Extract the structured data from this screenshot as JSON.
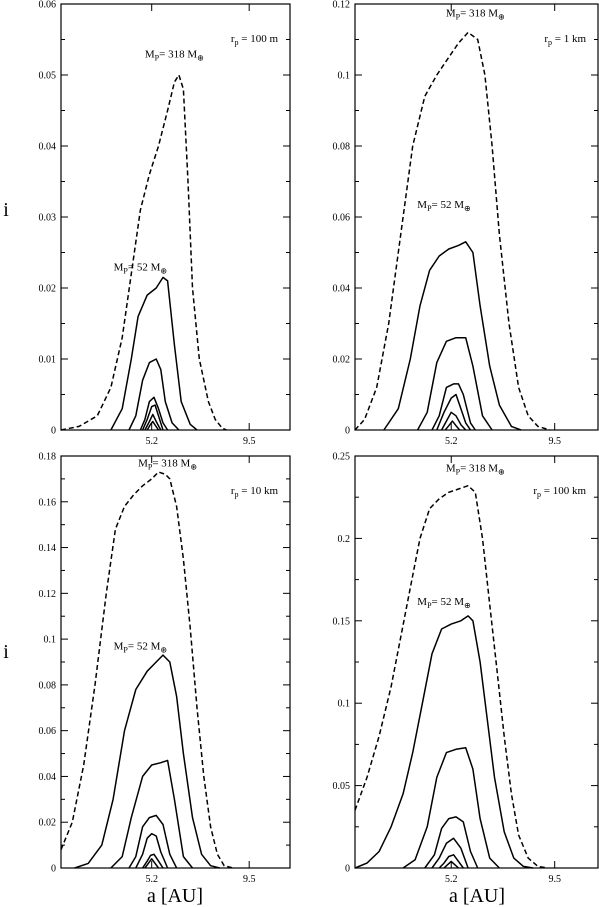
{
  "figure": {
    "xlabel": "a [AU]",
    "ylabel": "i"
  },
  "chart_data": [
    {
      "type": "line",
      "panel": "top-left",
      "xlim": [
        1.2,
        11.3
      ],
      "ylim": [
        0,
        0.06
      ],
      "xticks": [
        5.2,
        9.5
      ],
      "yticks": [
        0,
        0.01,
        0.02,
        0.03,
        0.04,
        0.05,
        0.06
      ],
      "radius_label": "r_p = 100 m",
      "radius_text": {
        "pre": "r",
        "sub": "p",
        "post": " = 100 m"
      },
      "annotations": [
        {
          "pre": "M",
          "sub": "P",
          "post": "= 318 M",
          "sym": "⊕",
          "x": 6.2,
          "y": 0.0525
        },
        {
          "pre": "M",
          "sub": "P",
          "post": "= 52 M",
          "sym": "⊕",
          "x": 4.7,
          "y": 0.0225
        }
      ],
      "series": [
        {
          "dash": true,
          "x": [
            1.2,
            2.0,
            2.8,
            3.4,
            3.9,
            4.3,
            4.7,
            5.1,
            5.5,
            5.9,
            6.2,
            6.4,
            6.6,
            6.8,
            7.0,
            7.3,
            7.7,
            8.0,
            8.3,
            8.5
          ],
          "y": [
            0,
            0.0005,
            0.002,
            0.006,
            0.013,
            0.022,
            0.031,
            0.036,
            0.04,
            0.045,
            0.049,
            0.05,
            0.048,
            0.035,
            0.02,
            0.01,
            0.004,
            0.0015,
            0.0003,
            0
          ]
        },
        {
          "dash": false,
          "x": [
            3.4,
            3.9,
            4.3,
            4.6,
            5.0,
            5.4,
            5.7,
            5.9,
            6.2,
            6.5,
            6.9,
            7.2
          ],
          "y": [
            0,
            0.003,
            0.01,
            0.016,
            0.019,
            0.02,
            0.0215,
            0.021,
            0.012,
            0.004,
            0.0008,
            0
          ]
        },
        {
          "dash": false,
          "x": [
            4.2,
            4.5,
            4.8,
            5.1,
            5.4,
            5.6,
            5.8,
            6.1,
            6.4
          ],
          "y": [
            0,
            0.002,
            0.007,
            0.0095,
            0.01,
            0.0085,
            0.004,
            0.001,
            0
          ]
        },
        {
          "dash": false,
          "x": [
            4.7,
            4.9,
            5.1,
            5.3,
            5.5,
            5.7,
            5.9
          ],
          "y": [
            0,
            0.0015,
            0.004,
            0.0046,
            0.003,
            0.001,
            0
          ]
        },
        {
          "dash": false,
          "x": [
            4.8,
            5.0,
            5.2,
            5.35,
            5.5,
            5.7
          ],
          "y": [
            0,
            0.0015,
            0.0033,
            0.0035,
            0.002,
            0
          ]
        },
        {
          "dash": false,
          "x": [
            4.9,
            5.1,
            5.25,
            5.4,
            5.6
          ],
          "y": [
            0,
            0.0012,
            0.0022,
            0.0012,
            0
          ]
        },
        {
          "dash": false,
          "x": [
            5.0,
            5.15,
            5.25,
            5.35,
            5.5
          ],
          "y": [
            0,
            0.0008,
            0.0012,
            0.0007,
            0
          ]
        }
      ]
    },
    {
      "type": "line",
      "panel": "top-right",
      "xlim": [
        1.2,
        11.3
      ],
      "ylim": [
        0,
        0.12
      ],
      "xticks": [
        5.2,
        9.5
      ],
      "yticks": [
        0,
        0.02,
        0.04,
        0.06,
        0.08,
        0.1,
        0.12
      ],
      "radius_label": "r_p = 1 km",
      "radius_text": {
        "pre": "r",
        "sub": "p",
        "post": " = 1 km"
      },
      "annotations": [
        {
          "pre": "M",
          "sub": "P",
          "post": "= 318 M",
          "sym": "⊕",
          "x": 6.2,
          "y": 0.1165
        },
        {
          "pre": "M",
          "sub": "P",
          "post": "= 52 M",
          "sym": "⊕",
          "x": 4.9,
          "y": 0.0625
        }
      ],
      "series": [
        {
          "dash": true,
          "x": [
            1.2,
            1.6,
            2.1,
            2.6,
            3.1,
            3.6,
            4.1,
            4.6,
            5.1,
            5.5,
            5.9,
            6.3,
            6.6,
            6.9,
            7.2,
            7.6,
            8.0,
            8.4,
            8.8,
            9.3
          ],
          "y": [
            0,
            0.003,
            0.012,
            0.03,
            0.055,
            0.08,
            0.094,
            0.1,
            0.105,
            0.109,
            0.112,
            0.11,
            0.1,
            0.08,
            0.055,
            0.03,
            0.012,
            0.004,
            0.001,
            0
          ]
        },
        {
          "dash": false,
          "x": [
            2.4,
            3.0,
            3.5,
            3.9,
            4.3,
            4.7,
            5.1,
            5.5,
            5.8,
            6.1,
            6.4,
            6.8,
            7.2,
            7.7,
            8.1
          ],
          "y": [
            0,
            0.006,
            0.02,
            0.035,
            0.045,
            0.049,
            0.051,
            0.052,
            0.053,
            0.05,
            0.035,
            0.018,
            0.007,
            0.001,
            0
          ]
        },
        {
          "dash": false,
          "x": [
            3.8,
            4.2,
            4.6,
            5.0,
            5.4,
            5.8,
            6.1,
            6.5,
            6.9
          ],
          "y": [
            0,
            0.005,
            0.019,
            0.025,
            0.026,
            0.026,
            0.018,
            0.004,
            0
          ]
        },
        {
          "dash": false,
          "x": [
            4.4,
            4.7,
            5.0,
            5.3,
            5.5,
            5.7,
            6.0,
            6.2
          ],
          "y": [
            0,
            0.004,
            0.012,
            0.013,
            0.013,
            0.01,
            0.002,
            0
          ]
        },
        {
          "dash": false,
          "x": [
            4.6,
            4.9,
            5.2,
            5.4,
            5.6,
            5.8,
            6.0
          ],
          "y": [
            0,
            0.005,
            0.009,
            0.01,
            0.006,
            0.002,
            0
          ]
        },
        {
          "dash": false,
          "x": [
            4.8,
            5.0,
            5.2,
            5.4,
            5.6,
            5.8
          ],
          "y": [
            0,
            0.0025,
            0.005,
            0.004,
            0.0015,
            0
          ]
        },
        {
          "dash": false,
          "x": [
            4.95,
            5.1,
            5.25,
            5.4,
            5.55
          ],
          "y": [
            0,
            0.0012,
            0.0025,
            0.0012,
            0
          ]
        }
      ]
    },
    {
      "type": "line",
      "panel": "bottom-left",
      "xlim": [
        1.2,
        11.3
      ],
      "ylim": [
        0,
        0.18
      ],
      "xticks": [
        5.2,
        9.5
      ],
      "yticks": [
        0,
        0.02,
        0.04,
        0.06,
        0.08,
        0.1,
        0.12,
        0.14,
        0.16,
        0.18
      ],
      "radius_label": "r_p = 10 km",
      "radius_text": {
        "pre": "r",
        "sub": "p",
        "post": " = 10 km"
      },
      "annotations": [
        {
          "pre": "M",
          "sub": "P",
          "post": "= 318 M",
          "sym": "⊕",
          "x": 5.9,
          "y": 0.1755
        },
        {
          "pre": "M",
          "sub": "P",
          "post": "= 52 M",
          "sym": "⊕",
          "x": 4.7,
          "y": 0.0955
        }
      ],
      "series": [
        {
          "dash": true,
          "x": [
            1.2,
            1.7,
            2.2,
            2.7,
            3.2,
            3.6,
            4.0,
            4.4,
            4.8,
            5.2,
            5.5,
            5.8,
            6.0,
            6.3,
            6.6,
            6.9,
            7.2,
            7.5,
            7.8,
            8.1,
            8.4,
            8.8
          ],
          "y": [
            0.008,
            0.02,
            0.045,
            0.08,
            0.12,
            0.148,
            0.158,
            0.163,
            0.167,
            0.17,
            0.173,
            0.172,
            0.17,
            0.158,
            0.135,
            0.105,
            0.07,
            0.04,
            0.018,
            0.006,
            0.001,
            0
          ]
        },
        {
          "dash": false,
          "x": [
            1.8,
            2.4,
            3.0,
            3.5,
            4.0,
            4.5,
            5.0,
            5.4,
            5.7,
            6.0,
            6.3,
            6.6,
            7.0,
            7.4,
            7.8,
            8.2
          ],
          "y": [
            0,
            0.002,
            0.01,
            0.03,
            0.06,
            0.078,
            0.086,
            0.09,
            0.093,
            0.09,
            0.075,
            0.05,
            0.022,
            0.006,
            0.001,
            0
          ]
        },
        {
          "dash": false,
          "x": [
            3.4,
            3.9,
            4.3,
            4.8,
            5.2,
            5.6,
            5.9,
            6.2,
            6.6,
            7.0
          ],
          "y": [
            0,
            0.005,
            0.022,
            0.04,
            0.045,
            0.046,
            0.047,
            0.03,
            0.005,
            0
          ]
        },
        {
          "dash": false,
          "x": [
            4.2,
            4.5,
            4.8,
            5.1,
            5.4,
            5.7,
            6.0,
            6.3
          ],
          "y": [
            0,
            0.005,
            0.018,
            0.022,
            0.023,
            0.019,
            0.006,
            0
          ]
        },
        {
          "dash": false,
          "x": [
            4.5,
            4.8,
            5.0,
            5.2,
            5.4,
            5.6,
            5.9
          ],
          "y": [
            0,
            0.006,
            0.013,
            0.015,
            0.014,
            0.007,
            0
          ]
        },
        {
          "dash": false,
          "x": [
            4.8,
            5.0,
            5.15,
            5.3,
            5.5,
            5.7
          ],
          "y": [
            0,
            0.003,
            0.0055,
            0.006,
            0.003,
            0
          ]
        },
        {
          "dash": false,
          "x": [
            4.9,
            5.05,
            5.2,
            5.35,
            5.5
          ],
          "y": [
            0,
            0.002,
            0.004,
            0.002,
            0
          ]
        }
      ]
    },
    {
      "type": "line",
      "panel": "bottom-right",
      "xlim": [
        1.2,
        11.3
      ],
      "ylim": [
        0,
        0.25
      ],
      "xticks": [
        5.2,
        9.5
      ],
      "yticks": [
        0,
        0.05,
        0.1,
        0.15,
        0.2,
        0.25
      ],
      "radius_label": "r_p = 100 km",
      "radius_text": {
        "pre": "r",
        "sub": "p",
        "post": " = 100 km"
      },
      "annotations": [
        {
          "pre": "M",
          "sub": "P",
          "post": "= 318 M",
          "sym": "⊕",
          "x": 6.2,
          "y": 0.2405
        },
        {
          "pre": "M",
          "sub": "P",
          "post": "= 52 M",
          "sym": "⊕",
          "x": 4.9,
          "y": 0.1595
        }
      ],
      "series": [
        {
          "dash": true,
          "x": [
            1.2,
            1.7,
            2.2,
            2.7,
            3.1,
            3.5,
            3.9,
            4.3,
            4.7,
            5.1,
            5.5,
            5.9,
            6.2,
            6.5,
            6.8,
            7.1,
            7.4,
            7.7,
            8.0,
            8.4,
            8.8,
            9.2
          ],
          "y": [
            0.035,
            0.055,
            0.08,
            0.11,
            0.14,
            0.17,
            0.2,
            0.218,
            0.224,
            0.228,
            0.23,
            0.232,
            0.228,
            0.2,
            0.16,
            0.12,
            0.08,
            0.045,
            0.02,
            0.006,
            0.001,
            0
          ]
        },
        {
          "dash": false,
          "x": [
            1.2,
            1.7,
            2.2,
            2.7,
            3.2,
            3.6,
            4.0,
            4.4,
            4.8,
            5.2,
            5.6,
            5.9,
            6.1,
            6.4,
            6.7,
            7.0,
            7.4,
            7.8,
            8.2,
            8.6
          ],
          "y": [
            0,
            0.003,
            0.01,
            0.025,
            0.045,
            0.07,
            0.1,
            0.13,
            0.145,
            0.148,
            0.15,
            0.153,
            0.15,
            0.125,
            0.09,
            0.055,
            0.022,
            0.006,
            0.001,
            0
          ]
        },
        {
          "dash": false,
          "x": [
            3.2,
            3.7,
            4.2,
            4.6,
            5.0,
            5.4,
            5.8,
            6.1,
            6.4,
            6.8,
            7.2
          ],
          "y": [
            0,
            0.005,
            0.025,
            0.055,
            0.07,
            0.072,
            0.073,
            0.06,
            0.03,
            0.006,
            0
          ]
        },
        {
          "dash": false,
          "x": [
            4.1,
            4.5,
            4.8,
            5.1,
            5.4,
            5.7,
            6.0,
            6.3
          ],
          "y": [
            0,
            0.008,
            0.024,
            0.03,
            0.031,
            0.028,
            0.01,
            0
          ]
        },
        {
          "dash": false,
          "x": [
            4.4,
            4.7,
            5.0,
            5.3,
            5.6,
            5.9
          ],
          "y": [
            0,
            0.006,
            0.015,
            0.018,
            0.012,
            0
          ]
        },
        {
          "dash": false,
          "x": [
            4.7,
            4.9,
            5.1,
            5.3,
            5.5,
            5.7
          ],
          "y": [
            0,
            0.003,
            0.007,
            0.008,
            0.004,
            0
          ]
        },
        {
          "dash": false,
          "x": [
            4.9,
            5.05,
            5.2,
            5.35,
            5.5
          ],
          "y": [
            0,
            0.002,
            0.004,
            0.002,
            0
          ]
        }
      ]
    }
  ]
}
